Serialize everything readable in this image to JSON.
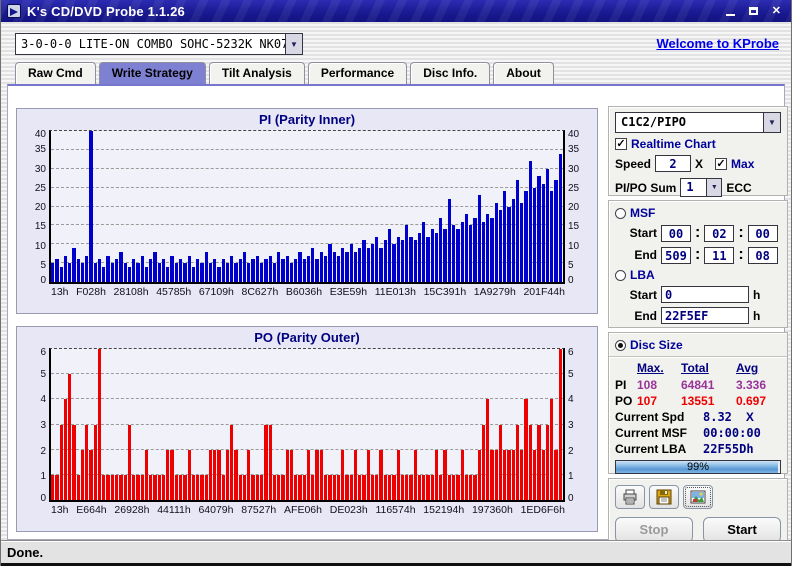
{
  "window": {
    "title": "K's CD/DVD Probe 1.1.26",
    "status": "Done."
  },
  "toolbar": {
    "drive_selected": "3-0-0-0 LITE-ON COMBO SOHC-5232K NK07",
    "welcome_link": "Welcome to KProbe"
  },
  "tabs": [
    {
      "label": "Raw Cmd",
      "active": false
    },
    {
      "label": "Write Strategy",
      "active": true
    },
    {
      "label": "Tilt Analysis",
      "active": false
    },
    {
      "label": "Performance",
      "active": false
    },
    {
      "label": "Disc Info.",
      "active": false
    },
    {
      "label": "About",
      "active": false
    }
  ],
  "chart_data": [
    {
      "type": "bar",
      "title": "PI (Parity Inner)",
      "color": "#0000cc",
      "ylim": [
        0,
        40
      ],
      "yticks": [
        0,
        5,
        10,
        15,
        20,
        25,
        30,
        35,
        40
      ],
      "grid": true,
      "categories": [
        "13h",
        "F028h",
        "28108h",
        "45785h",
        "67109h",
        "8C627h",
        "B6036h",
        "E3E59h",
        "11E013h",
        "15C391h",
        "1A9279h",
        "201F44h"
      ],
      "values": [
        5,
        6,
        4,
        7,
        5,
        9,
        6,
        5,
        7,
        40,
        5,
        6,
        4,
        7,
        5,
        6,
        8,
        5,
        4,
        6,
        5,
        7,
        4,
        6,
        8,
        5,
        6,
        4,
        7,
        5,
        6,
        5,
        7,
        4,
        6,
        5,
        8,
        5,
        6,
        4,
        6,
        5,
        7,
        5,
        6,
        8,
        5,
        6,
        7,
        5,
        6,
        7,
        5,
        8,
        6,
        7,
        5,
        6,
        8,
        6,
        7,
        9,
        6,
        8,
        7,
        10,
        8,
        7,
        9,
        8,
        10,
        8,
        9,
        11,
        9,
        10,
        12,
        9,
        11,
        14,
        10,
        12,
        11,
        15,
        12,
        11,
        13,
        16,
        12,
        14,
        13,
        17,
        14,
        22,
        15,
        14,
        16,
        18,
        15,
        17,
        23,
        16,
        18,
        17,
        21,
        19,
        24,
        20,
        22,
        27,
        21,
        24,
        32,
        25,
        28,
        26,
        30,
        24,
        27,
        34
      ]
    },
    {
      "type": "bar",
      "title": "PO (Parity Outer)",
      "color": "#ee0000",
      "ylim": [
        0,
        6
      ],
      "yticks": [
        0,
        1,
        2,
        3,
        4,
        5,
        6
      ],
      "grid": true,
      "categories": [
        "13h",
        "E664h",
        "26928h",
        "44111h",
        "64079h",
        "87527h",
        "AFE06h",
        "DE023h",
        "116574h",
        "152194h",
        "197360h",
        "1ED6F6h"
      ],
      "values": [
        1,
        1,
        3,
        4,
        5,
        3,
        1,
        2,
        3,
        2,
        3,
        6,
        1,
        1,
        1,
        1,
        1,
        1,
        3,
        1,
        1,
        1,
        2,
        1,
        1,
        1,
        1,
        2,
        2,
        1,
        1,
        1,
        2,
        1,
        1,
        1,
        1,
        2,
        2,
        2,
        1,
        2,
        3,
        2,
        1,
        1,
        2,
        1,
        1,
        1,
        3,
        3,
        1,
        1,
        1,
        2,
        2,
        1,
        1,
        1,
        2,
        1,
        2,
        2,
        1,
        1,
        1,
        1,
        2,
        1,
        1,
        2,
        1,
        1,
        2,
        1,
        1,
        2,
        1,
        1,
        1,
        2,
        1,
        1,
        1,
        2,
        1,
        1,
        1,
        1,
        2,
        1,
        2,
        1,
        1,
        1,
        2,
        1,
        1,
        1,
        2,
        3,
        4,
        2,
        2,
        3,
        2,
        2,
        2,
        3,
        2,
        4,
        3,
        2,
        3,
        2,
        3,
        4,
        2,
        6
      ]
    }
  ],
  "controls": {
    "mode_select": "C1C2/PIPO",
    "realtime_chart": {
      "label": "Realtime Chart",
      "checked": true
    },
    "speed": {
      "label": "Speed",
      "value": "2",
      "unit": "X"
    },
    "max": {
      "label": "Max",
      "checked": true
    },
    "pipo_sum": {
      "label": "PI/PO Sum",
      "value": "1",
      "suffix": "ECC"
    },
    "msf": {
      "label": "MSF",
      "selected": false,
      "start_label": "Start",
      "end_label": "End",
      "start": [
        "00",
        "02",
        "00"
      ],
      "end": [
        "509",
        "11",
        "08"
      ]
    },
    "lba": {
      "label": "LBA",
      "selected": false,
      "start_label": "Start",
      "end_label": "End",
      "start": "0",
      "end": "22F5EF",
      "unit": "h"
    },
    "disc_size": {
      "label": "Disc Size",
      "selected": true
    }
  },
  "stats": {
    "headers": [
      "Max.",
      "Total",
      "Avg"
    ],
    "rows": [
      {
        "name": "PI",
        "values": [
          "108",
          "64841",
          "3.336"
        ],
        "color": "#993399"
      },
      {
        "name": "PO",
        "values": [
          "107",
          "13551",
          "0.697"
        ],
        "color": "#ee0000"
      }
    ],
    "current": [
      {
        "label": "Current Spd",
        "value": "8.32",
        "suffix": "X"
      },
      {
        "label": "Current MSF",
        "value": "00:00:00",
        "suffix": ""
      },
      {
        "label": "Current LBA",
        "value": "22F55Dh",
        "suffix": ""
      }
    ],
    "progress_percent": 99,
    "progress_label": "99%"
  },
  "actions": {
    "stop": "Stop",
    "start": "Start"
  }
}
